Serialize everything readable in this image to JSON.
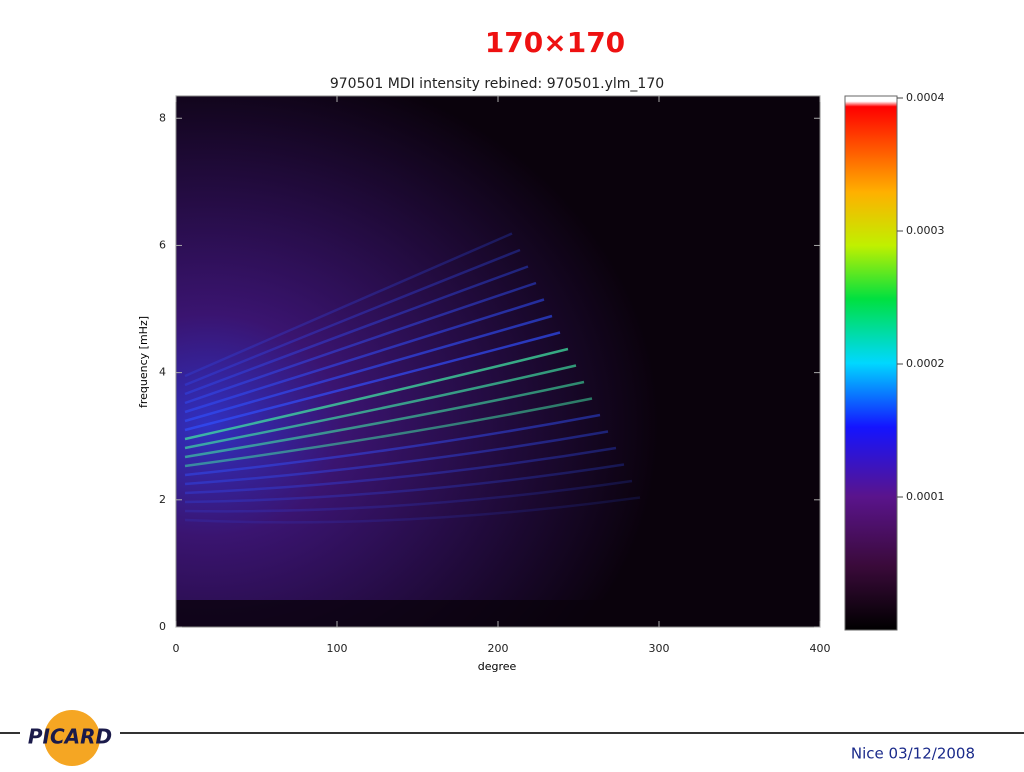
{
  "slide_title": "170×170",
  "footer": "Nice 03/12/2008",
  "logo": "PICARD",
  "chart_data": {
    "type": "heatmap",
    "title": "970501 MDI intensity rebined: 970501.ylm_170",
    "x_label": "degree",
    "y_label": "frequency [mHz]",
    "xlim": [
      0,
      400
    ],
    "xticks": [
      0,
      100,
      200,
      300,
      400
    ],
    "ylim": [
      0,
      8.35
    ],
    "yticks": [
      0,
      2,
      4,
      6,
      8
    ],
    "clim": [
      0,
      0.0004
    ],
    "cticks": [
      0.0001,
      0.0002,
      0.0003,
      0.0004
    ]
  }
}
